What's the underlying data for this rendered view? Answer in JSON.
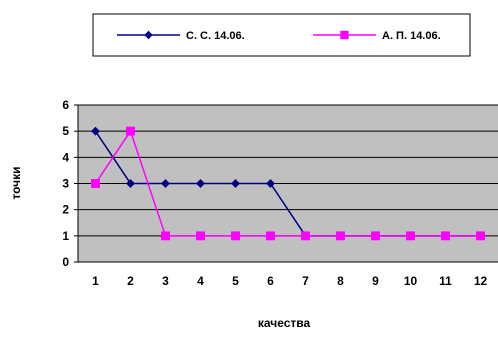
{
  "chart_data": {
    "type": "line",
    "categories": [
      "1",
      "2",
      "3",
      "4",
      "5",
      "6",
      "7",
      "8",
      "9",
      "10",
      "11",
      "12"
    ],
    "series": [
      {
        "name": "С. С. 14.06.",
        "values": [
          5,
          3,
          3,
          3,
          3,
          3,
          1,
          1,
          1,
          1,
          1,
          1
        ],
        "color": "#000080",
        "marker": "diamond"
      },
      {
        "name": "А. П. 14.06.",
        "values": [
          3,
          5,
          1,
          1,
          1,
          1,
          1,
          1,
          1,
          1,
          1,
          1
        ],
        "color": "#ff00ff",
        "marker": "square"
      }
    ],
    "xlabel": "качества",
    "ylabel": "точки",
    "ylim": [
      0,
      6
    ],
    "yticks": [
      "0",
      "1",
      "2",
      "3",
      "4",
      "5",
      "6"
    ],
    "grid": true,
    "plot_background": "#c0c0c0",
    "legend_position": "top"
  }
}
